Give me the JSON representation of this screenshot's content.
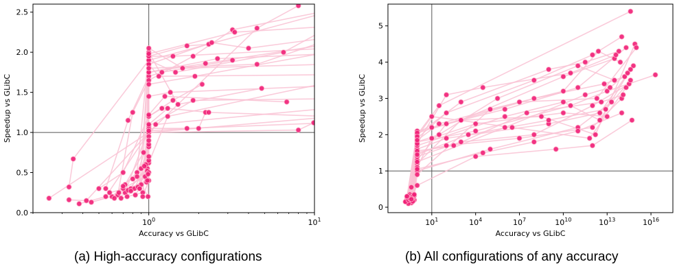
{
  "captions": {
    "a": "(a) High-accuracy configurations",
    "b": "(b) All configurations of any accuracy"
  },
  "colors": {
    "point": "#ef1f77",
    "point_edge": "#ffb3cc",
    "line": "#f9c2d4",
    "refline": "#555555"
  },
  "chart_data": [
    {
      "type": "scatter",
      "title": "",
      "xlabel": "Accuracy vs GLibC",
      "ylabel": "Speedup vs GLibC",
      "xscale": "log",
      "xlim": [
        0.2,
        10
      ],
      "ylim": [
        0,
        2.6
      ],
      "xticks": [
        {
          "value": 1,
          "base": "10",
          "exp": "0"
        },
        {
          "value": 10,
          "base": "10",
          "exp": "1"
        }
      ],
      "yticks": [
        "0.0",
        "0.5",
        "1.0",
        "1.5",
        "2.0",
        "2.5"
      ],
      "reference_lines": {
        "x": 1,
        "y": 1
      },
      "series": [
        {
          "x": [
            0.25,
            1.0,
            10.5
          ],
          "y": [
            0.18,
            1.0,
            1.18
          ]
        },
        {
          "x": [
            0.33,
            0.35,
            1.0,
            12
          ],
          "y": [
            0.32,
            0.67,
            1.9,
            2.5
          ]
        },
        {
          "x": [
            0.33,
            0.42,
            1.0,
            4.5,
            8.0
          ],
          "y": [
            0.16,
            0.15,
            1.0,
            2.3,
            2.58
          ]
        },
        {
          "x": [
            0.38,
            0.55,
            1.0,
            8.0,
            9.9
          ],
          "y": [
            0.11,
            0.2,
            1.0,
            1.03,
            1.12
          ]
        },
        {
          "x": [
            0.45,
            0.72,
            1.0,
            2.0,
            2.2
          ],
          "y": [
            0.13,
            0.25,
            1.05,
            1.05,
            1.25
          ]
        },
        {
          "x": [
            0.5,
            0.7,
            1.0,
            1.4,
            2.1
          ],
          "y": [
            0.3,
            0.5,
            1.2,
            1.4,
            1.6
          ]
        },
        {
          "x": [
            0.55,
            0.75,
            1.0,
            1.2,
            3.2
          ],
          "y": [
            0.3,
            1.15,
            1.7,
            1.75,
            1.9
          ]
        },
        {
          "x": [
            0.6,
            0.85,
            1.0,
            1.5,
            4.8
          ],
          "y": [
            0.2,
            0.5,
            2.0,
            1.35,
            1.55
          ]
        },
        {
          "x": [
            0.65,
            0.8,
            1.0,
            1.85,
            3.2,
            12
          ],
          "y": [
            0.22,
            1.25,
            1.65,
            1.95,
            2.28,
            2.52
          ]
        },
        {
          "x": [
            0.68,
            0.92,
            1.0,
            1.0,
            1.2
          ],
          "y": [
            0.18,
            0.25,
            0.82,
            1.2,
            1.3
          ]
        },
        {
          "x": [
            0.7,
            0.95,
            1.0,
            1.7,
            2.3
          ],
          "y": [
            0.3,
            0.45,
            1.95,
            2.08,
            2.1
          ]
        },
        {
          "x": [
            0.72,
            0.93,
            1.0,
            1.6,
            12
          ],
          "y": [
            0.35,
            0.75,
            2.05,
            1.8,
            1.85
          ]
        },
        {
          "x": [
            0.75,
            0.98,
            1.0,
            2.4,
            4.0,
            12
          ],
          "y": [
            0.28,
            0.55,
            1.85,
            2.12,
            2.05,
            2.18
          ]
        },
        {
          "x": [
            0.78,
            0.97,
            1.0,
            1.3,
            12
          ],
          "y": [
            0.3,
            0.38,
            0.62,
            1.2,
            1.62
          ]
        },
        {
          "x": [
            0.8,
            0.98,
            1.0,
            1.0,
            2.2,
            12
          ],
          "y": [
            0.42,
            0.52,
            1.05,
            1.75,
            1.86,
            2.1
          ]
        },
        {
          "x": [
            0.82,
            0.96,
            1.0,
            1.85,
            12
          ],
          "y": [
            0.3,
            0.6,
            1.08,
            1.4,
            1.42
          ]
        },
        {
          "x": [
            0.85,
            0.99,
            1.0,
            1.45,
            6.5,
            12
          ],
          "y": [
            0.45,
            0.2,
            1.9,
            1.75,
            2.0,
            2.3
          ]
        },
        {
          "x": [
            0.9,
            1.0,
            1.0,
            1.9,
            12
          ],
          "y": [
            0.55,
            0.85,
            1.6,
            1.7,
            2.0
          ]
        },
        {
          "x": [
            0.92,
            1.0,
            1.0,
            1.1,
            12
          ],
          "y": [
            0.2,
            0.4,
            0.95,
            1.1,
            1.3
          ]
        },
        {
          "x": [
            0.62,
            0.88,
            1.0,
            1.4,
            12
          ],
          "y": [
            0.18,
            0.3,
            1.95,
            1.95,
            2.05
          ]
        },
        {
          "x": [
            0.58,
            0.9,
            1.0,
            1.3,
            2.3,
            12
          ],
          "y": [
            0.25,
            0.35,
            1.1,
            1.3,
            1.25,
            1.2
          ]
        },
        {
          "x": [
            0.74,
            1.0,
            1.0,
            1.15,
            12
          ],
          "y": [
            0.2,
            0.5,
            1.85,
            1.7,
            1.72
          ]
        },
        {
          "x": [
            0.86,
            1.0,
            1.0,
            1.35,
            12
          ],
          "y": [
            0.32,
            0.65,
            1.45,
            1.5,
            1.58
          ]
        },
        {
          "x": [
            0.66,
            0.98,
            1.0,
            2.6,
            12
          ],
          "y": [
            0.25,
            0.4,
            1.75,
            1.92,
            1.98
          ]
        },
        {
          "x": [
            0.7,
            0.94,
            1.0,
            1.25,
            6.8
          ],
          "y": [
            0.33,
            0.58,
            1.22,
            1.45,
            1.38
          ]
        },
        {
          "x": [
            0.78,
            1.0,
            1.0,
            4.5,
            12
          ],
          "y": [
            0.27,
            0.9,
            1.8,
            1.85,
            2.15
          ]
        },
        {
          "x": [
            0.83,
            0.99,
            1.0,
            1.7,
            12
          ],
          "y": [
            0.22,
            0.48,
            1.02,
            1.05,
            1.12
          ]
        },
        {
          "x": [
            0.88,
            1.0,
            1.0,
            3.3,
            12
          ],
          "y": [
            0.3,
            0.7,
            1.98,
            2.25,
            2.32
          ]
        }
      ]
    },
    {
      "type": "scatter",
      "title": "",
      "xlabel": "Accuracy vs GLibC",
      "ylabel": "Speedup vs GLibC",
      "xscale": "log",
      "xlim": [
        -2,
        17.5
      ],
      "ylim": [
        -0.15,
        5.6
      ],
      "xticks": [
        {
          "value": 1,
          "base": "10",
          "exp": "1"
        },
        {
          "value": 4,
          "base": "10",
          "exp": "4"
        },
        {
          "value": 7,
          "base": "10",
          "exp": "7"
        },
        {
          "value": 10,
          "base": "10",
          "exp": "10"
        },
        {
          "value": 13,
          "base": "10",
          "exp": "13"
        },
        {
          "value": 16,
          "base": "10",
          "exp": "16"
        }
      ],
      "yticks": [
        "0",
        "1",
        "2",
        "3",
        "4",
        "5"
      ],
      "reference_lines": {
        "x": 1,
        "y": 1
      },
      "note": "x values are log10 of accuracy",
      "series": [
        {
          "x": [
            -0.8,
            -0.4,
            0.0,
            1.5,
            14.6
          ],
          "y": [
            0.15,
            0.55,
            2.0,
            2.8,
            5.4
          ]
        },
        {
          "x": [
            -0.6,
            0.0,
            2.0,
            8.0,
            12.0,
            14.0
          ],
          "y": [
            0.3,
            1.9,
            2.6,
            3.5,
            4.2,
            4.7
          ]
        },
        {
          "x": [
            -0.5,
            0.0,
            3.0,
            10.0,
            13.5
          ],
          "y": [
            0.2,
            1.2,
            2.4,
            3.6,
            4.1
          ]
        },
        {
          "x": [
            -0.7,
            0.0,
            1.0,
            6.0,
            11.0,
            14.3
          ],
          "y": [
            0.25,
            2.1,
            2.2,
            2.7,
            3.3,
            4.4
          ]
        },
        {
          "x": [
            -0.3,
            0.0,
            2.0,
            9.0,
            12.5,
            14.8
          ],
          "y": [
            0.3,
            1.6,
            1.9,
            2.3,
            2.6,
            3.9
          ]
        },
        {
          "x": [
            -0.4,
            0.0,
            4.0,
            10.5,
            13.0,
            16.3
          ],
          "y": [
            0.12,
            1.8,
            2.1,
            2.8,
            3.2,
            3.65
          ]
        },
        {
          "x": [
            -0.2,
            0.0,
            3.0,
            8.0,
            12.0,
            14.5
          ],
          "y": [
            0.2,
            1.4,
            1.8,
            2.0,
            2.8,
            3.4
          ]
        },
        {
          "x": [
            -0.6,
            0.0,
            5.0,
            11.0,
            13.3
          ],
          "y": [
            0.18,
            1.0,
            1.6,
            2.2,
            2.9
          ]
        },
        {
          "x": [
            -0.5,
            0.0,
            2.0,
            7.0,
            12.0,
            14.0
          ],
          "y": [
            0.35,
            1.5,
            1.7,
            1.9,
            2.2,
            3.0
          ]
        },
        {
          "x": [
            -0.3,
            0.0,
            6.0,
            10.0,
            12.5,
            14.6
          ],
          "y": [
            0.25,
            1.7,
            2.5,
            2.9,
            2.4,
            3.8
          ]
        },
        {
          "x": [
            -0.7,
            0.0,
            3.0,
            9.0,
            11.5,
            13.8
          ],
          "y": [
            0.28,
            2.0,
            2.9,
            3.8,
            4.0,
            4.3
          ]
        },
        {
          "x": [
            -0.4,
            0.0,
            1.0,
            4.0,
            10.0,
            13.0
          ],
          "y": [
            0.22,
            1.1,
            1.9,
            2.3,
            2.6,
            2.5
          ]
        },
        {
          "x": [
            -0.2,
            0.0,
            2.0,
            8.0,
            12.8,
            14.2
          ],
          "y": [
            0.32,
            1.3,
            2.3,
            3.0,
            3.4,
            3.6
          ]
        },
        {
          "x": [
            -0.6,
            0.0,
            4.0,
            9.5,
            12.0,
            14.7
          ],
          "y": [
            0.1,
            0.6,
            1.4,
            1.6,
            1.7,
            2.4
          ]
        },
        {
          "x": [
            -0.5,
            0.0,
            1.5,
            5.5,
            11.0,
            13.5
          ],
          "y": [
            0.3,
            1.8,
            2.0,
            3.0,
            3.9,
            3.5
          ]
        },
        {
          "x": [
            -0.3,
            0.0,
            3.0,
            8.5,
            12.2,
            14.9
          ],
          "y": [
            0.2,
            2.05,
            2.4,
            2.5,
            2.0,
            4.5
          ]
        },
        {
          "x": [
            -0.8,
            0.0,
            6.0,
            11.5,
            13.2,
            14.4
          ],
          "y": [
            0.15,
            1.25,
            2.2,
            3.1,
            3.3,
            3.7
          ]
        },
        {
          "x": [
            -0.4,
            0.0,
            2.5,
            7.5,
            12.6,
            14.1
          ],
          "y": [
            0.27,
            1.55,
            1.7,
            2.6,
            2.9,
            3.1
          ]
        },
        {
          "x": [
            -0.2,
            0.0,
            5.0,
            10.0,
            12.4,
            13.9
          ],
          "y": [
            0.35,
            0.9,
            2.7,
            3.2,
            4.3,
            4.0
          ]
        },
        {
          "x": [
            -0.6,
            0.0,
            1.0,
            6.5,
            11.8,
            14.3
          ],
          "y": [
            0.2,
            1.95,
            2.5,
            2.2,
            1.9,
            3.3
          ]
        },
        {
          "x": [
            -0.5,
            0.0,
            3.5,
            9.0,
            12.9,
            14.6
          ],
          "y": [
            0.24,
            1.45,
            2.0,
            2.4,
            2.7,
            3.5
          ]
        },
        {
          "x": [
            -0.3,
            0.0,
            2.0,
            4.5,
            10.5,
            13.6
          ],
          "y": [
            0.16,
            1.75,
            3.1,
            3.3,
            3.7,
            4.2
          ]
        },
        {
          "x": [
            -0.7,
            0.0,
            4.5,
            8.0,
            11.0,
            14.0
          ],
          "y": [
            0.3,
            1.05,
            1.5,
            1.8,
            2.1,
            2.6
          ]
        },
        {
          "x": [
            -0.4,
            0.0,
            1.5,
            7.0,
            12.3,
            15.0
          ],
          "y": [
            0.22,
            1.85,
            2.3,
            2.9,
            3.0,
            4.4
          ]
        }
      ]
    }
  ]
}
